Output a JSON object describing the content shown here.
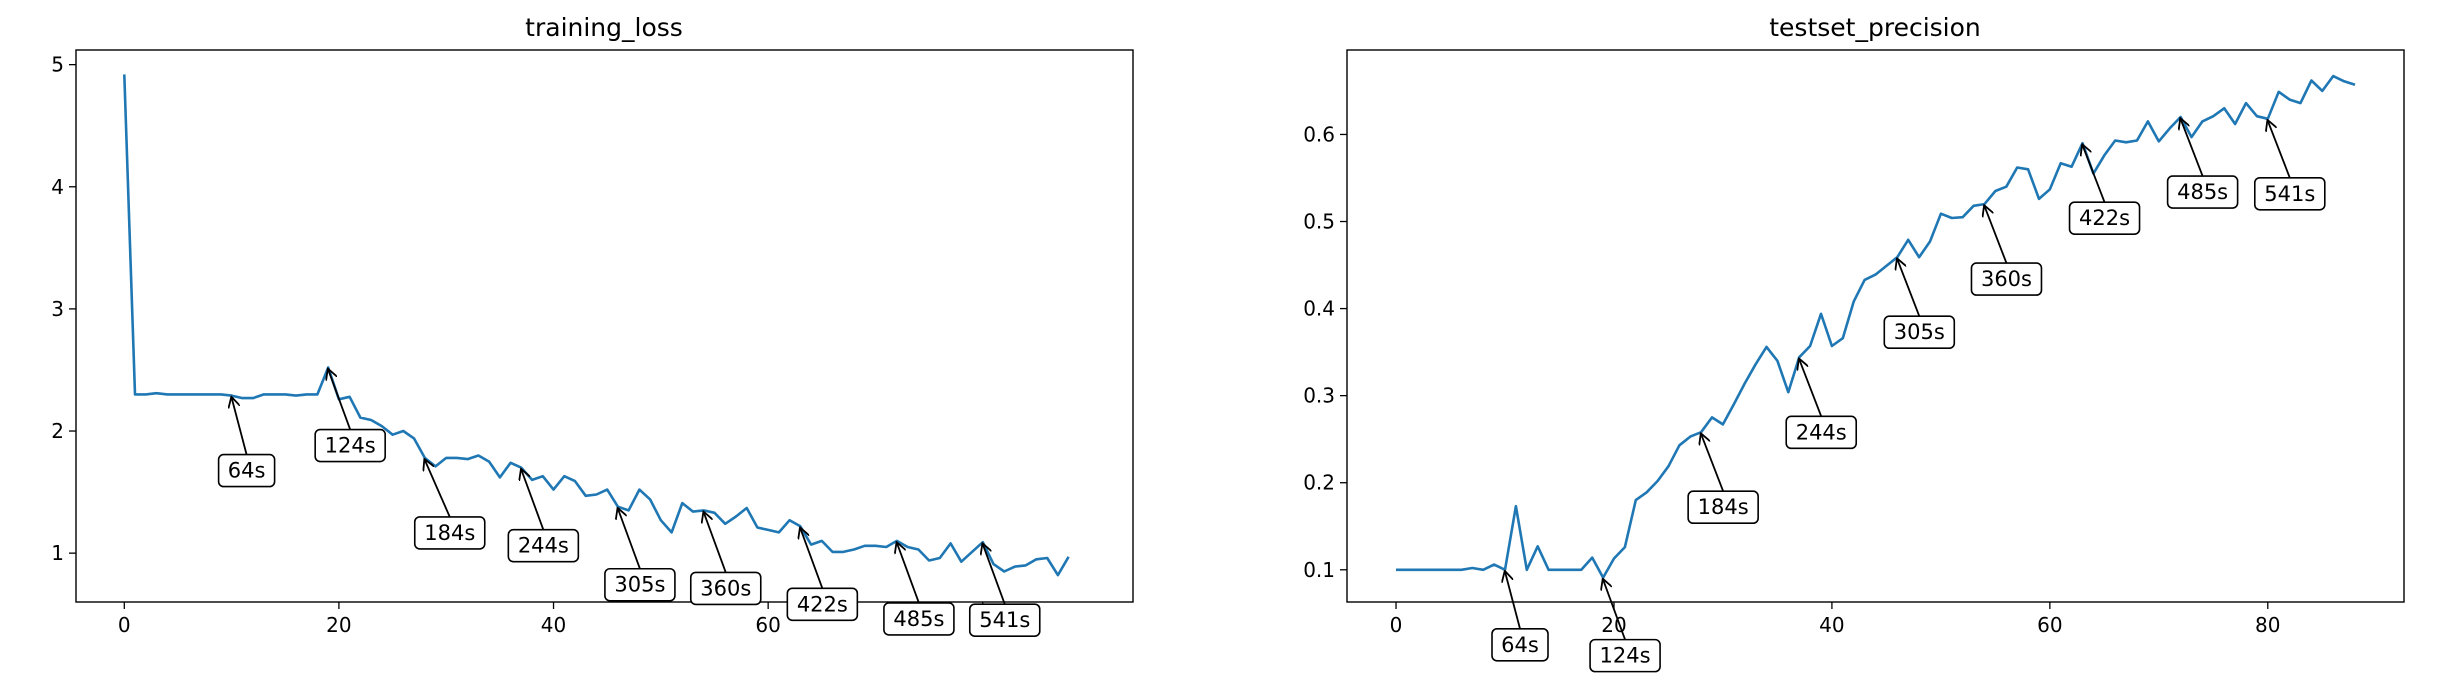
{
  "chart_data": [
    {
      "type": "line",
      "title": "training_loss",
      "xlabel": "",
      "ylabel": "",
      "xlim": [
        -4.5,
        94
      ],
      "ylim": [
        0.6,
        5.12
      ],
      "xticks": [
        0,
        20,
        40,
        60,
        80
      ],
      "yticks": [
        1,
        2,
        3,
        4,
        5
      ],
      "color": "#1f77b4",
      "grid": false,
      "series": [
        {
          "x": [
            0,
            1,
            2,
            3,
            4,
            5,
            6,
            7,
            8,
            9,
            10,
            11,
            12,
            13,
            14,
            15,
            16,
            17,
            18,
            19,
            20,
            21,
            22,
            23,
            24,
            25,
            26,
            27,
            28,
            29,
            30,
            31,
            32,
            33,
            34,
            35,
            36,
            37,
            38,
            39,
            40,
            41,
            42,
            43,
            44,
            45,
            46,
            47,
            48,
            49,
            50,
            51,
            52,
            53,
            54,
            55,
            56,
            57,
            58,
            59,
            60,
            61,
            62,
            63,
            64,
            65,
            66,
            67,
            68,
            69,
            70,
            71,
            72,
            73,
            74,
            75,
            76,
            77,
            78,
            79,
            80,
            81,
            82,
            83,
            84,
            85,
            86,
            87,
            88
          ],
          "values": [
            4.92,
            2.3,
            2.3,
            2.31,
            2.3,
            2.3,
            2.3,
            2.3,
            2.3,
            2.3,
            2.29,
            2.27,
            2.27,
            2.3,
            2.3,
            2.3,
            2.29,
            2.3,
            2.3,
            2.52,
            2.26,
            2.28,
            2.11,
            2.09,
            2.04,
            1.97,
            2.0,
            1.94,
            1.78,
            1.71,
            1.78,
            1.78,
            1.77,
            1.8,
            1.75,
            1.62,
            1.74,
            1.7,
            1.6,
            1.63,
            1.52,
            1.63,
            1.59,
            1.47,
            1.48,
            1.52,
            1.38,
            1.35,
            1.52,
            1.44,
            1.27,
            1.17,
            1.41,
            1.34,
            1.35,
            1.33,
            1.24,
            1.3,
            1.37,
            1.21,
            1.19,
            1.17,
            1.27,
            1.22,
            1.07,
            1.1,
            1.01,
            1.01,
            1.03,
            1.06,
            1.06,
            1.05,
            1.1,
            1.05,
            1.03,
            0.94,
            0.96,
            1.08,
            0.93,
            1.01,
            1.09,
            0.91,
            0.85,
            0.89,
            0.9,
            0.95,
            0.96,
            0.82,
            0.97
          ]
        }
      ],
      "annotations": [
        {
          "label": "64s",
          "x": 10,
          "y": 2.29
        },
        {
          "label": "124s",
          "x": 19,
          "y": 2.52
        },
        {
          "label": "184s",
          "x": 28,
          "y": 1.78
        },
        {
          "label": "244s",
          "x": 37,
          "y": 1.7
        },
        {
          "label": "305s",
          "x": 46,
          "y": 1.38
        },
        {
          "label": "360s",
          "x": 54,
          "y": 1.35
        },
        {
          "label": "422s",
          "x": 63,
          "y": 1.22
        },
        {
          "label": "485s",
          "x": 72,
          "y": 1.1
        },
        {
          "label": "541s",
          "x": 80,
          "y": 1.09
        }
      ]
    },
    {
      "type": "line",
      "title": "testset_precision",
      "xlabel": "",
      "ylabel": "",
      "xlim": [
        -4.5,
        92.5
      ],
      "ylim": [
        0.063,
        0.697
      ],
      "xticks": [
        0,
        20,
        40,
        60,
        80
      ],
      "yticks": [
        0.1,
        0.2,
        0.3,
        0.4,
        0.5,
        0.6
      ],
      "color": "#1f77b4",
      "grid": false,
      "series": [
        {
          "x": [
            0,
            1,
            2,
            3,
            4,
            5,
            6,
            7,
            8,
            9,
            10,
            11,
            12,
            13,
            14,
            15,
            16,
            17,
            18,
            19,
            20,
            21,
            22,
            23,
            24,
            25,
            26,
            27,
            28,
            29,
            30,
            31,
            32,
            33,
            34,
            35,
            36,
            37,
            38,
            39,
            40,
            41,
            42,
            43,
            44,
            45,
            46,
            47,
            48,
            49,
            50,
            51,
            52,
            53,
            54,
            55,
            56,
            57,
            58,
            59,
            60,
            61,
            62,
            63,
            64,
            65,
            66,
            67,
            68,
            69,
            70,
            71,
            72,
            73,
            74,
            75,
            76,
            77,
            78,
            79,
            80,
            81,
            82,
            83,
            84,
            85,
            86,
            87,
            88
          ],
          "values": [
            0.1,
            0.1,
            0.1,
            0.1,
            0.1,
            0.1,
            0.1,
            0.102,
            0.1,
            0.106,
            0.1,
            0.173,
            0.1,
            0.127,
            0.1,
            0.1,
            0.1,
            0.1,
            0.114,
            0.091,
            0.113,
            0.126,
            0.18,
            0.189,
            0.202,
            0.219,
            0.243,
            0.253,
            0.258,
            0.275,
            0.267,
            0.29,
            0.314,
            0.336,
            0.356,
            0.34,
            0.304,
            0.344,
            0.357,
            0.394,
            0.357,
            0.366,
            0.408,
            0.433,
            0.439,
            0.449,
            0.459,
            0.479,
            0.459,
            0.477,
            0.509,
            0.504,
            0.505,
            0.518,
            0.52,
            0.535,
            0.54,
            0.562,
            0.56,
            0.526,
            0.537,
            0.567,
            0.563,
            0.59,
            0.555,
            0.576,
            0.593,
            0.591,
            0.593,
            0.615,
            0.592,
            0.607,
            0.62,
            0.597,
            0.615,
            0.621,
            0.63,
            0.612,
            0.636,
            0.621,
            0.618,
            0.649,
            0.64,
            0.636,
            0.662,
            0.65,
            0.667,
            0.661,
            0.657
          ]
        }
      ],
      "annotations": [
        {
          "label": "64s",
          "x": 10,
          "y": 0.1
        },
        {
          "label": "124s",
          "x": 19,
          "y": 0.091
        },
        {
          "label": "184s",
          "x": 28,
          "y": 0.258
        },
        {
          "label": "244s",
          "x": 37,
          "y": 0.344
        },
        {
          "label": "305s",
          "x": 46,
          "y": 0.459
        },
        {
          "label": "360s",
          "x": 54,
          "y": 0.52
        },
        {
          "label": "422s",
          "x": 63,
          "y": 0.59
        },
        {
          "label": "485s",
          "x": 72,
          "y": 0.62
        },
        {
          "label": "541s",
          "x": 80,
          "y": 0.618
        }
      ]
    }
  ]
}
